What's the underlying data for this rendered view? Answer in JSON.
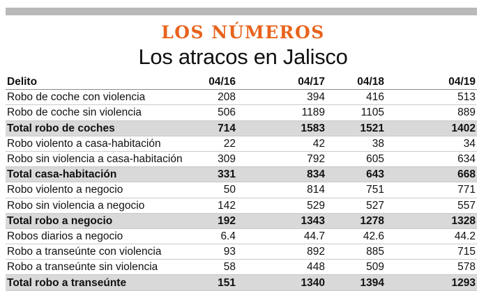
{
  "header": {
    "kicker": "LOS NÚMEROS",
    "title": "Los atracos en Jalisco"
  },
  "colors": {
    "accent": "#e8631c",
    "total_row_bg": "#d9d9d9",
    "top_bar": "#b9b9b9"
  },
  "chart_data": {
    "type": "table",
    "title": "Los atracos en Jalisco",
    "subtitle": "LOS NÚMEROS",
    "columns": [
      "Delito",
      "04/16",
      "04/17",
      "04/18",
      "04/19"
    ],
    "rows": [
      {
        "label": "Robo de coche con violencia",
        "values": [
          "208",
          "394",
          "416",
          "513"
        ],
        "total": false
      },
      {
        "label": "Robo de coche sin violencia",
        "values": [
          "506",
          "1189",
          "1105",
          "889"
        ],
        "total": false
      },
      {
        "label": "Total robo de coches",
        "values": [
          "714",
          "1583",
          "1521",
          "1402"
        ],
        "total": true
      },
      {
        "label": "Robo violento a casa-habitación",
        "values": [
          "22",
          "42",
          "38",
          "34"
        ],
        "total": false
      },
      {
        "label": "Robo sin violencia a casa-habitación",
        "values": [
          "309",
          "792",
          "605",
          "634"
        ],
        "total": false
      },
      {
        "label": "Total casa-habitación",
        "values": [
          "331",
          "834",
          "643",
          "668"
        ],
        "total": true
      },
      {
        "label": "Robo violento a negocio",
        "values": [
          "50",
          "814",
          "751",
          "771"
        ],
        "total": false
      },
      {
        "label": "Robo sin violencia a negocio",
        "values": [
          "142",
          "529",
          "527",
          "557"
        ],
        "total": false
      },
      {
        "label": "Total robo a negocio",
        "values": [
          "192",
          "1343",
          "1278",
          "1328"
        ],
        "total": true
      },
      {
        "label": "Robos diarios a negocio",
        "values": [
          "6.4",
          "44.7",
          "42.6",
          "44.2"
        ],
        "total": false
      },
      {
        "label": "Robo a transeúnte con violencia",
        "values": [
          "93",
          "892",
          "885",
          "715"
        ],
        "total": false
      },
      {
        "label": "Robo a transeúnte sin violencia",
        "values": [
          "58",
          "448",
          "509",
          "578"
        ],
        "total": false
      },
      {
        "label": "Total robo a transeúnte",
        "values": [
          "151",
          "1340",
          "1394",
          "1293"
        ],
        "total": true
      }
    ]
  }
}
